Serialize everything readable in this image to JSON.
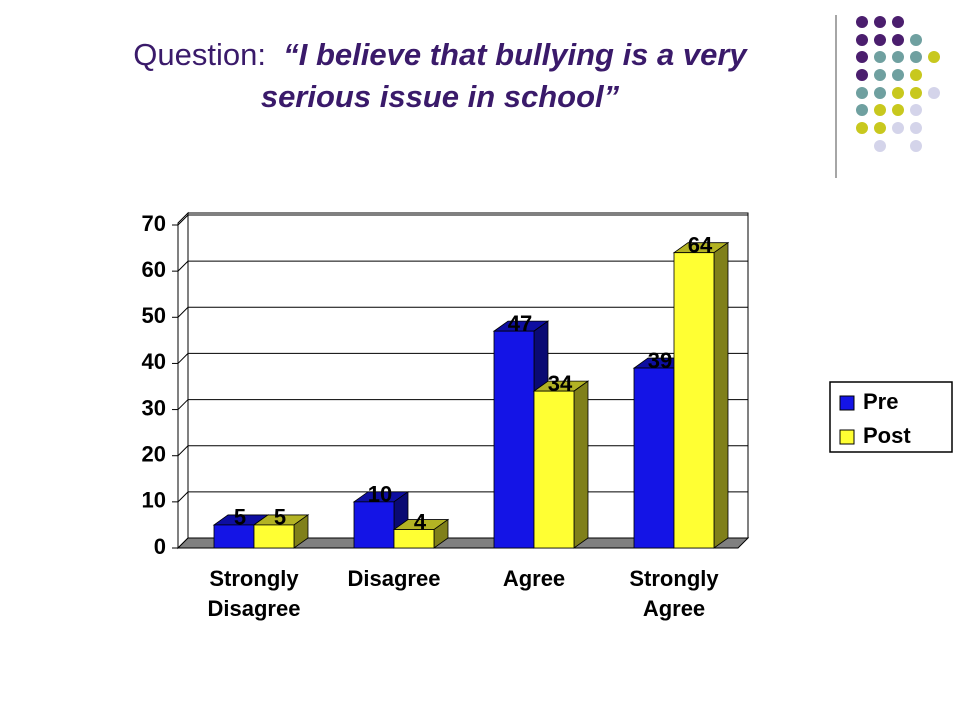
{
  "title_prefix": "Question:",
  "chart_data": {
    "type": "bar",
    "title": "“I believe that bullying is a very serious issue in school”",
    "categories": [
      "Strongly Disagree",
      "Disagree",
      "Agree",
      "Strongly Agree"
    ],
    "series": [
      {
        "name": "Pre",
        "color": "#1414e6",
        "values": [
          5,
          10,
          47,
          39
        ]
      },
      {
        "name": "Post",
        "color": "#ffff33",
        "values": [
          5,
          4,
          34,
          64
        ]
      }
    ],
    "ylim": [
      0,
      70
    ],
    "yticks": [
      0,
      10,
      20,
      30,
      40,
      50,
      60,
      70
    ],
    "grid": true,
    "legend": "right"
  }
}
